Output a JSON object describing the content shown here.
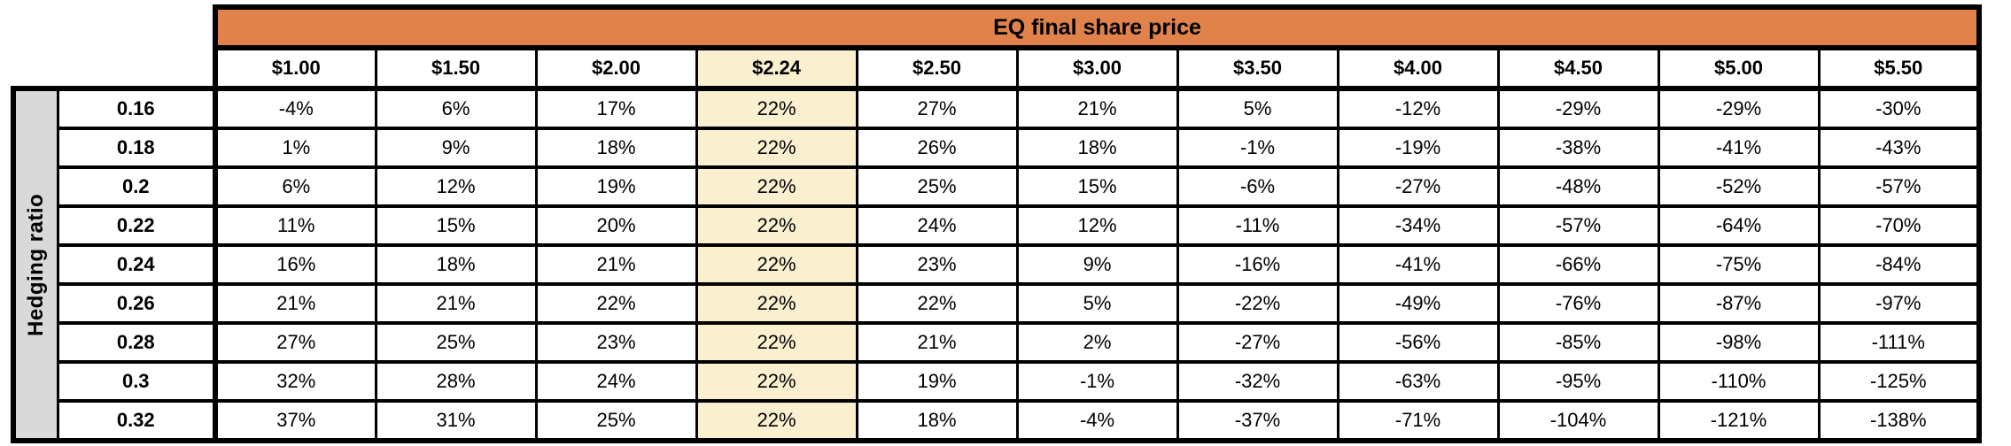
{
  "colors": {
    "title_bg": "#E0824A",
    "highlight_bg": "#FAF0CF",
    "axis_label_bg": "#D9D9D9",
    "cell_bg": "#FFFFFF",
    "border": "#000000",
    "text": "#000000"
  },
  "chart_data": {
    "type": "table",
    "title": "EQ final share price",
    "row_axis_label": "Hedging ratio",
    "value_unit": "%",
    "columns": [
      "$1.00",
      "$1.50",
      "$2.00",
      "$2.24",
      "$2.50",
      "$3.00",
      "$3.50",
      "$4.00",
      "$4.50",
      "$5.00",
      "$5.50"
    ],
    "highlighted_column": "$2.24",
    "highlighted_column_index": 3,
    "row_labels": [
      "0.16",
      "0.18",
      "0.2",
      "0.22",
      "0.24",
      "0.26",
      "0.28",
      "0.3",
      "0.32"
    ],
    "values": [
      [
        -4,
        6,
        17,
        22,
        27,
        21,
        5,
        -12,
        -29,
        -29,
        -30
      ],
      [
        1,
        9,
        18,
        22,
        26,
        18,
        -1,
        -19,
        -38,
        -41,
        -43
      ],
      [
        6,
        12,
        19,
        22,
        25,
        15,
        -6,
        -27,
        -48,
        -52,
        -57
      ],
      [
        11,
        15,
        20,
        22,
        24,
        12,
        -11,
        -34,
        -57,
        -64,
        -70
      ],
      [
        16,
        18,
        21,
        22,
        23,
        9,
        -16,
        -41,
        -66,
        -75,
        -84
      ],
      [
        21,
        21,
        22,
        22,
        22,
        5,
        -22,
        -49,
        -76,
        -87,
        -97
      ],
      [
        27,
        25,
        23,
        22,
        21,
        2,
        -27,
        -56,
        -85,
        -98,
        -111
      ],
      [
        32,
        28,
        24,
        22,
        19,
        -1,
        -32,
        -63,
        -95,
        -110,
        -125
      ],
      [
        37,
        31,
        25,
        22,
        18,
        -4,
        -37,
        -71,
        -104,
        -121,
        -138
      ]
    ]
  }
}
